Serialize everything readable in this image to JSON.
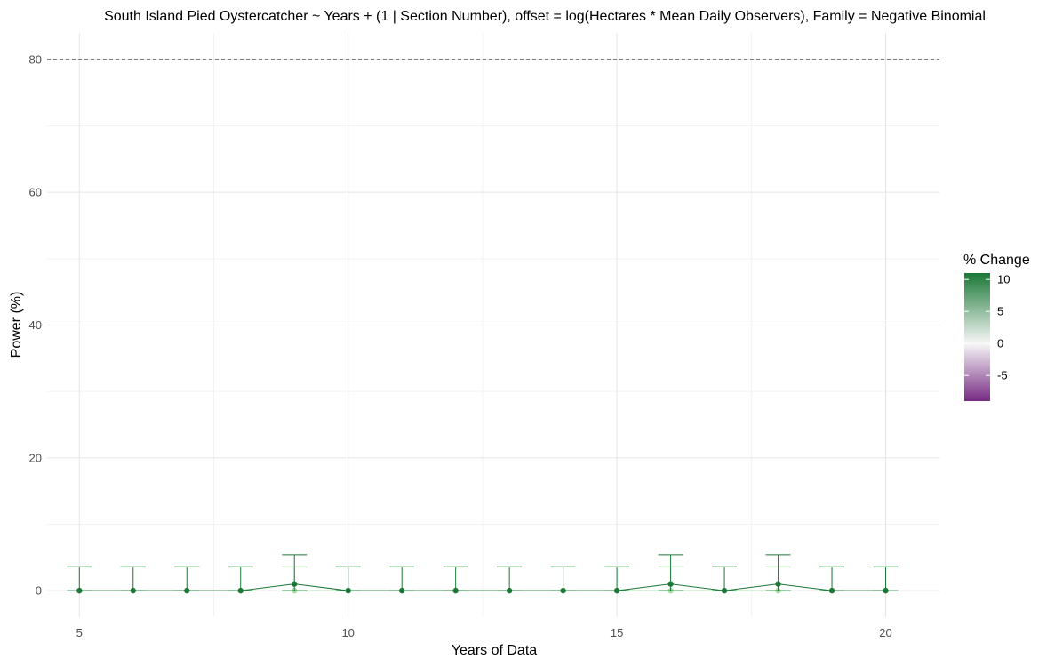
{
  "chart_data": {
    "type": "line",
    "title": "South Island Pied Oystercatcher ~ Years + (1 | Section Number), offset = log(Hectares * Mean Daily Observers), Family = Negative Binomial",
    "xlabel": "Years of Data",
    "ylabel": "Power (%)",
    "xlim": [
      4.4,
      21
    ],
    "ylim": [
      -4,
      84
    ],
    "x_ticks": [
      5,
      10,
      15,
      20
    ],
    "y_ticks": [
      0,
      20,
      40,
      60,
      80
    ],
    "grid": true,
    "reference_line": {
      "y": 80,
      "style": "dashed"
    },
    "legend": {
      "title": "% Change",
      "position": "right",
      "type": "gradient",
      "ticks": [
        10,
        5,
        0,
        -5
      ],
      "range": [
        -9,
        11
      ],
      "colors": {
        "low": "#762a83",
        "mid": "#f7f7f7",
        "high": "#1b7837"
      }
    },
    "series": [
      {
        "change": 10,
        "color": "#1b7837",
        "points": [
          {
            "x": 5,
            "y": 0,
            "lo": 0,
            "hi": 3.6
          },
          {
            "x": 6,
            "y": 0,
            "lo": 0,
            "hi": 3.6
          },
          {
            "x": 7,
            "y": 0,
            "lo": 0,
            "hi": 3.6
          },
          {
            "x": 8,
            "y": 0,
            "lo": 0,
            "hi": 3.6
          },
          {
            "x": 9,
            "y": 1,
            "lo": 0,
            "hi": 5.4
          },
          {
            "x": 10,
            "y": 0,
            "lo": 0,
            "hi": 3.6
          },
          {
            "x": 11,
            "y": 0,
            "lo": 0,
            "hi": 3.6
          },
          {
            "x": 12,
            "y": 0,
            "lo": 0,
            "hi": 3.6
          },
          {
            "x": 13,
            "y": 0,
            "lo": 0,
            "hi": 3.6
          },
          {
            "x": 14,
            "y": 0,
            "lo": 0,
            "hi": 3.6
          },
          {
            "x": 15,
            "y": 0,
            "lo": 0,
            "hi": 3.6
          },
          {
            "x": 16,
            "y": 1,
            "lo": 0,
            "hi": 5.4
          },
          {
            "x": 17,
            "y": 0,
            "lo": 0,
            "hi": 3.6
          },
          {
            "x": 18,
            "y": 1,
            "lo": 0,
            "hi": 5.4
          },
          {
            "x": 19,
            "y": 0,
            "lo": 0,
            "hi": 3.6
          },
          {
            "x": 20,
            "y": 0,
            "lo": 0,
            "hi": 3.6
          }
        ]
      },
      {
        "change": 5,
        "color": "#a6dba0",
        "points": [
          {
            "x": 9,
            "y": 0,
            "lo": 0,
            "hi": 3.6
          },
          {
            "x": 16,
            "y": 0,
            "lo": 0,
            "hi": 3.6
          },
          {
            "x": 18,
            "y": 0,
            "lo": 0,
            "hi": 3.6
          }
        ]
      }
    ]
  }
}
